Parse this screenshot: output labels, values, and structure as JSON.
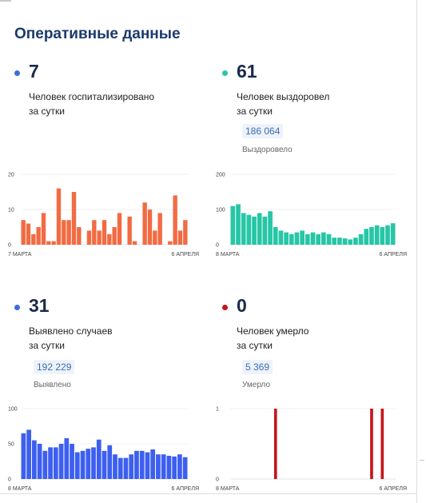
{
  "title": "Оперативные данные",
  "stats": {
    "hospitalized": {
      "value": "7",
      "line1": "Человек госпитализировано",
      "line2": "за сутки",
      "color": "#3d6fd8"
    },
    "recovered": {
      "value": "61",
      "line1": "Человек выздоровел",
      "line2": "за сутки",
      "total": "186 064",
      "total_label": "Выздоровело",
      "color": "#26c6a6"
    },
    "detected": {
      "value": "31",
      "line1": "Выявлено случаев",
      "line2": "за сутки",
      "total": "192 229",
      "total_label": "Выявлено",
      "color": "#3d6fd8"
    },
    "died": {
      "value": "0",
      "line1": "Человек умерло",
      "line2": "за сутки",
      "total": "5 369",
      "total_label": "Умерло",
      "color": "#c4161c"
    }
  },
  "chart_data": [
    {
      "type": "bar",
      "color": "#f26b43",
      "ylim": [
        0,
        20
      ],
      "yticks": [
        "0",
        "10",
        "20"
      ],
      "x_start": "7 МАРТА",
      "x_end": "6 АПРЕЛЯ",
      "values": [
        7,
        6,
        3,
        5,
        9,
        1,
        1,
        16,
        7,
        7,
        15,
        5,
        0,
        4,
        7,
        4,
        7,
        3,
        5,
        9,
        0,
        8,
        1,
        0,
        12,
        10,
        4,
        9,
        0,
        1,
        14,
        4,
        7
      ]
    },
    {
      "type": "bar",
      "color": "#26c6a6",
      "ylim": [
        0,
        200
      ],
      "yticks": [
        "0",
        "100",
        "200"
      ],
      "x_start": "8 МАРТА",
      "x_end": "6 АПРЕЛЯ",
      "values": [
        110,
        115,
        90,
        85,
        80,
        90,
        80,
        95,
        50,
        40,
        35,
        30,
        35,
        40,
        30,
        35,
        30,
        35,
        30,
        20,
        20,
        18,
        15,
        20,
        30,
        45,
        50,
        55,
        50,
        55,
        61
      ]
    },
    {
      "type": "bar",
      "color": "#3d5ff0",
      "ylim": [
        0,
        100
      ],
      "yticks": [
        "0",
        "50",
        "100"
      ],
      "x_start": "8 МАРТА",
      "x_end": "6 АПРЕЛЯ",
      "values": [
        65,
        70,
        55,
        50,
        40,
        45,
        45,
        50,
        58,
        50,
        38,
        40,
        43,
        45,
        56,
        40,
        48,
        35,
        30,
        30,
        35,
        40,
        40,
        38,
        42,
        35,
        35,
        33,
        32,
        35,
        31
      ]
    },
    {
      "type": "bar",
      "color": "#c4161c",
      "ylim": [
        0,
        1
      ],
      "yticks": [
        "0",
        "1"
      ],
      "x_start": "8 МАРТА",
      "x_end": "6 АПРЕЛЯ",
      "values": [
        0,
        0,
        0,
        0,
        0,
        0,
        0,
        0,
        1,
        0,
        0,
        0,
        0,
        0,
        0,
        0,
        0,
        0,
        0,
        0,
        0,
        0,
        0,
        0,
        0,
        0,
        1,
        0,
        1,
        0,
        0
      ]
    }
  ]
}
